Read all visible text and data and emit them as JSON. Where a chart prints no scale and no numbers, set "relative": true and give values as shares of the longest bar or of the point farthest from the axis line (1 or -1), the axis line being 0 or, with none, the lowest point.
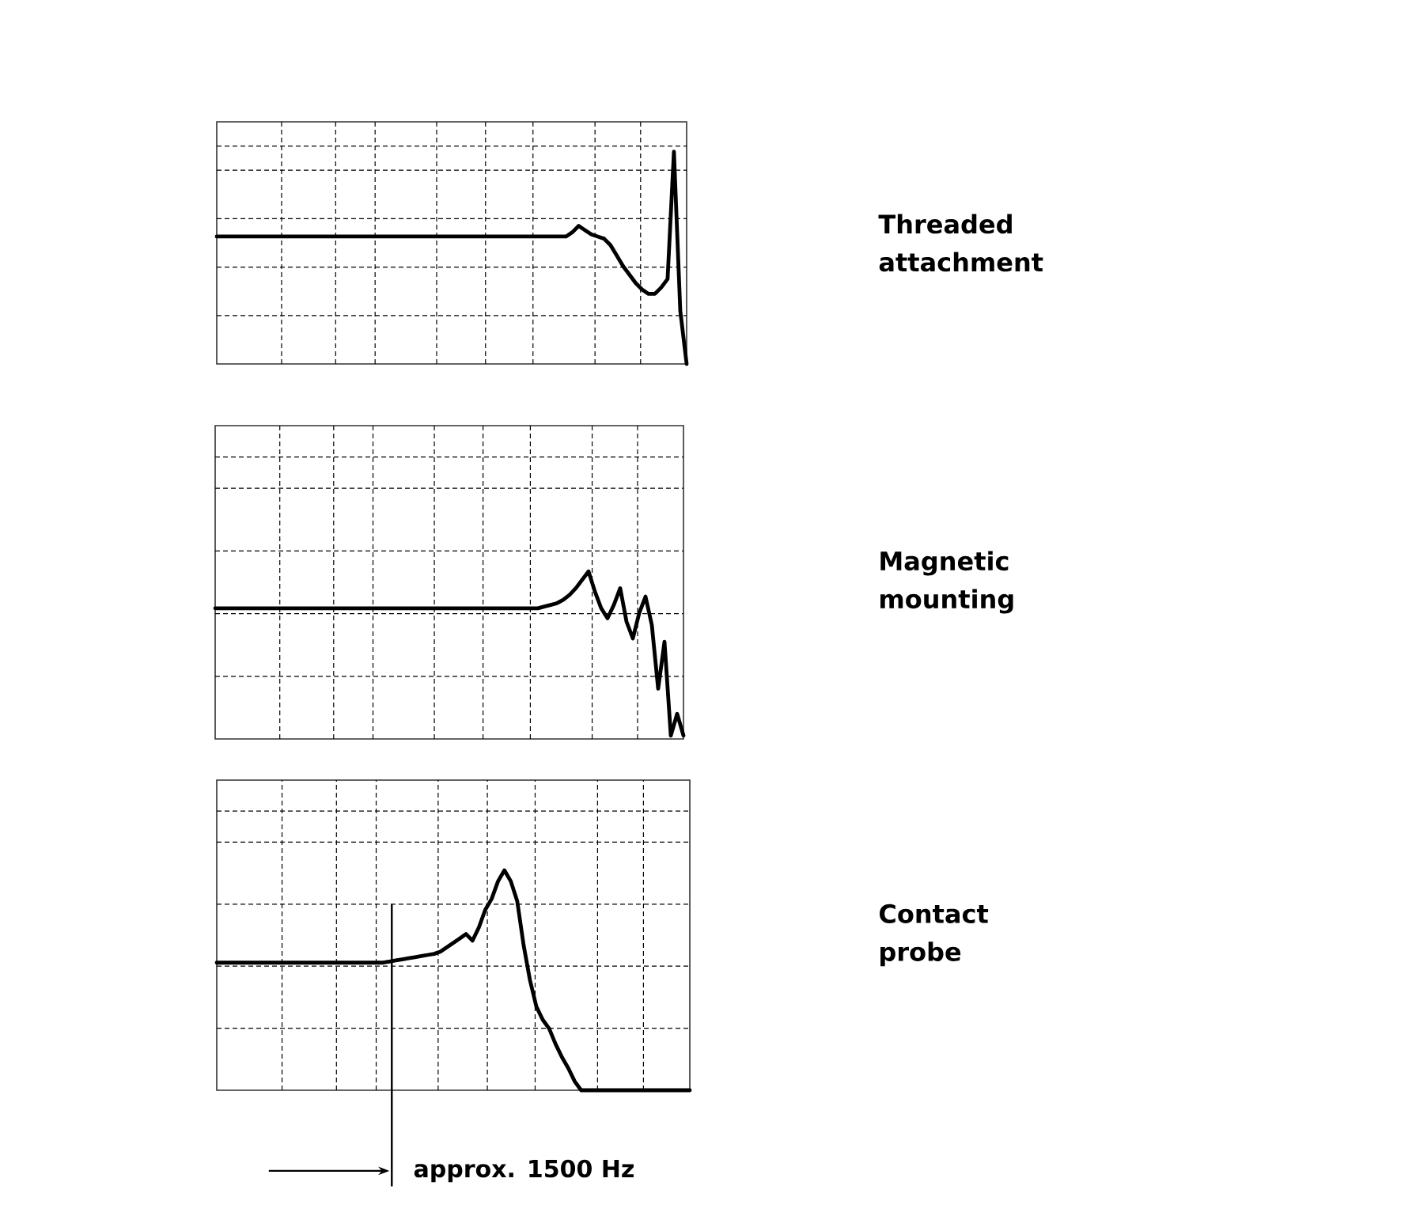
{
  "chart_data": [
    {
      "type": "line",
      "annotations": [
        "Threaded attachment"
      ],
      "relative": true,
      "grid": true,
      "color": "#000000",
      "categories": [
        null,
        null,
        null,
        null,
        null,
        null,
        null,
        null,
        null,
        null,
        null,
        null,
        null,
        null,
        null,
        null,
        null,
        null,
        null,
        null,
        null,
        null,
        null,
        null,
        null,
        null,
        null,
        null,
        null,
        null,
        null,
        null,
        null,
        null,
        null,
        null,
        null,
        null,
        null,
        null,
        null,
        null,
        null,
        null,
        null,
        null,
        null,
        null,
        null,
        null,
        null,
        null,
        null,
        null,
        null,
        null,
        null,
        null,
        null,
        null,
        null,
        null,
        null,
        null,
        null,
        null,
        null,
        null,
        null,
        null,
        null,
        null,
        null,
        null,
        null
      ],
      "values": [
        0.6,
        0.6,
        0.6,
        0.6,
        0.6,
        0.6,
        0.6,
        0.6,
        0.6,
        0.6,
        0.6,
        0.6,
        0.6,
        0.6,
        0.6,
        0.6,
        0.6,
        0.6,
        0.6,
        0.6,
        0.6,
        0.6,
        0.6,
        0.6,
        0.6,
        0.6,
        0.6,
        0.6,
        0.6,
        0.6,
        0.6,
        0.6,
        0.6,
        0.6,
        0.6,
        0.6,
        0.6,
        0.6,
        0.6,
        0.6,
        0.6,
        0.6,
        0.6,
        0.6,
        0.6,
        0.6,
        0.6,
        0.6,
        0.6,
        0.6,
        0.6,
        0.6,
        0.6,
        0.6,
        0.6,
        0.6,
        0.62,
        0.65,
        0.63,
        0.61,
        0.6,
        0.59,
        0.56,
        0.51,
        0.46,
        0.42,
        0.38,
        0.35,
        0.33,
        0.33,
        0.36,
        0.4,
        1.0,
        0.25,
        0.0
      ]
    },
    {
      "type": "line",
      "annotations": [
        "Magnetic mounting"
      ],
      "relative": true,
      "grid": true,
      "color": "#000000",
      "categories": [
        null,
        null,
        null,
        null,
        null,
        null,
        null,
        null,
        null,
        null,
        null,
        null,
        null,
        null,
        null,
        null,
        null,
        null,
        null,
        null,
        null,
        null,
        null,
        null,
        null,
        null,
        null,
        null,
        null,
        null,
        null,
        null,
        null,
        null,
        null,
        null,
        null,
        null,
        null,
        null,
        null,
        null,
        null,
        null,
        null,
        null,
        null,
        null,
        null,
        null,
        null,
        null,
        null,
        null,
        null,
        null,
        null,
        null,
        null,
        null,
        null,
        null,
        null,
        null,
        null,
        null,
        null,
        null,
        null,
        null,
        null,
        null,
        null,
        null,
        null
      ],
      "values": [
        0.78,
        0.78,
        0.78,
        0.78,
        0.78,
        0.78,
        0.78,
        0.78,
        0.78,
        0.78,
        0.78,
        0.78,
        0.78,
        0.78,
        0.78,
        0.78,
        0.78,
        0.78,
        0.78,
        0.78,
        0.78,
        0.78,
        0.78,
        0.78,
        0.78,
        0.78,
        0.78,
        0.78,
        0.78,
        0.78,
        0.78,
        0.78,
        0.78,
        0.78,
        0.78,
        0.78,
        0.78,
        0.78,
        0.78,
        0.78,
        0.78,
        0.78,
        0.78,
        0.78,
        0.78,
        0.78,
        0.78,
        0.78,
        0.78,
        0.78,
        0.78,
        0.78,
        0.79,
        0.8,
        0.81,
        0.83,
        0.86,
        0.9,
        0.95,
        1.0,
        0.88,
        0.78,
        0.72,
        0.8,
        0.9,
        0.7,
        0.6,
        0.75,
        0.85,
        0.68,
        0.3,
        0.58,
        0.02,
        0.15,
        0.02
      ]
    },
    {
      "type": "line",
      "relative": true,
      "grid": true,
      "color": "#000000",
      "annotations": [
        "Contact probe",
        "approx. 1500 Hz"
      ],
      "categories": [
        null,
        null,
        null,
        null,
        null,
        null,
        null,
        null,
        null,
        null,
        null,
        null,
        null,
        null,
        null,
        null,
        null,
        null,
        null,
        null,
        null,
        null,
        null,
        null,
        null,
        null,
        null,
        null,
        null,
        null,
        null,
        null,
        null,
        null,
        null,
        null,
        null,
        null,
        null,
        null,
        null,
        null,
        null,
        null,
        null,
        null,
        null,
        null,
        null,
        null,
        null,
        null,
        null,
        null,
        null,
        null,
        null,
        null,
        null,
        null,
        null,
        null,
        null,
        null,
        null,
        null,
        null,
        null,
        null,
        null,
        null,
        null,
        null,
        null,
        null
      ],
      "values": [
        0.58,
        0.58,
        0.58,
        0.58,
        0.58,
        0.58,
        0.58,
        0.58,
        0.58,
        0.58,
        0.58,
        0.58,
        0.58,
        0.58,
        0.58,
        0.58,
        0.58,
        0.58,
        0.58,
        0.58,
        0.58,
        0.58,
        0.58,
        0.58,
        0.58,
        0.58,
        0.58,
        0.585,
        0.59,
        0.595,
        0.6,
        0.605,
        0.61,
        0.615,
        0.62,
        0.63,
        0.65,
        0.67,
        0.69,
        0.71,
        0.68,
        0.74,
        0.82,
        0.87,
        0.95,
        1.0,
        0.95,
        0.86,
        0.66,
        0.5,
        0.38,
        0.32,
        0.28,
        0.21,
        0.15,
        0.1,
        0.04,
        0,
        0,
        0,
        0,
        0,
        0,
        0,
        0,
        0,
        0,
        0,
        0,
        0,
        0,
        0,
        0,
        0,
        0
      ]
    }
  ]
}
